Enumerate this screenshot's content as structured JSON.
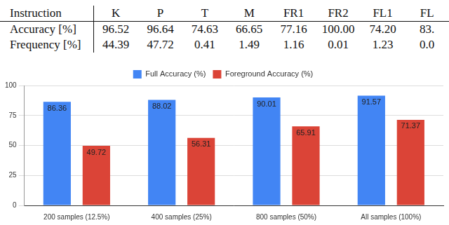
{
  "table": {
    "rows": [
      [
        "Instruction",
        "K",
        "P",
        "T",
        "M",
        "FR1",
        "FR2",
        "FL1",
        "FL"
      ],
      [
        "Accuracy [%]",
        "96.52",
        "96.64",
        "74.63",
        "66.65",
        "77.16",
        "100.00",
        "74.20",
        "83."
      ],
      [
        "Frequency [%]",
        "44.39",
        "47.72",
        "0.41",
        "1.49",
        "1.16",
        "0.01",
        "1.23",
        "0.0"
      ]
    ]
  },
  "chart_data": {
    "type": "bar",
    "categories": [
      "200 samples (12.5%)",
      "400 samples (25%)",
      "800 samples (50%)",
      "All samples (100%)"
    ],
    "series": [
      {
        "name": "Full Accuracy (%)",
        "color": "#4285f4",
        "values": [
          86.36,
          88.02,
          90.01,
          91.57
        ]
      },
      {
        "name": "Foreground Accuracy (%)",
        "color": "#db4437",
        "values": [
          49.72,
          56.31,
          65.91,
          71.37
        ]
      }
    ],
    "ylim": [
      0,
      100
    ],
    "yticks": [
      0,
      25,
      50,
      75,
      100
    ],
    "grid": true,
    "legend": "top",
    "data_labels": true
  }
}
